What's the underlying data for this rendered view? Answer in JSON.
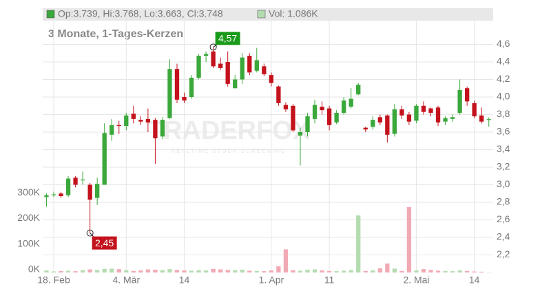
{
  "chart_data": {
    "type": "candlestick",
    "ohlc_label": "Op:3.739, Hi:3.768, Lo:3.663, Cl:3.748",
    "volume_label": "Vol: 1.086K",
    "subtitle": "3 Monate, 1-Tages-Kerzen",
    "watermark": "TRADERFOX",
    "watermark_sub": "REALTIME STOCK SCREENING",
    "categories": [
      null,
      "18. Feb",
      null,
      null,
      null,
      null,
      null,
      null,
      null,
      null,
      null,
      "4. Mär",
      null,
      null,
      null,
      null,
      null,
      null,
      null,
      "14",
      null,
      null,
      null,
      null,
      null,
      null,
      null,
      null,
      null,
      null,
      null,
      "1. Apr",
      null,
      null,
      null,
      null,
      null,
      null,
      null,
      "11",
      null,
      null,
      null,
      null,
      null,
      null,
      null,
      null,
      null,
      null,
      null,
      "2. Mai",
      null,
      null,
      null,
      null,
      null,
      null,
      null,
      "14",
      null,
      null
    ],
    "open": [
      2.86,
      2.88,
      2.9,
      2.88,
      3.08,
      3.05,
      3.0,
      2.85,
      3.0,
      3.57,
      3.68,
      3.67,
      3.81,
      3.74,
      3.75,
      3.74,
      3.55,
      3.76,
      4.32,
      4.0,
      4.0,
      4.22,
      4.47,
      4.52,
      4.38,
      4.4,
      4.1,
      4.2,
      4.47,
      4.3,
      4.35,
      4.25,
      4.12,
      3.91,
      3.9,
      3.56,
      3.6,
      3.75,
      3.89,
      3.87,
      3.71,
      3.82,
      3.89,
      4.03,
      3.65,
      3.66,
      3.77,
      3.79,
      3.58,
      3.86,
      3.8,
      3.73,
      3.9,
      3.87,
      3.88,
      3.72,
      3.75,
      3.82,
      4.1,
      3.93,
      3.79,
      3.739
    ],
    "high": [
      2.9,
      2.92,
      2.92,
      3.1,
      3.1,
      3.15,
      3.02,
      3.08,
      3.7,
      3.75,
      3.73,
      3.82,
      3.9,
      3.78,
      3.87,
      3.76,
      3.77,
      4.43,
      4.38,
      4.05,
      4.25,
      4.49,
      4.52,
      4.57,
      4.45,
      4.52,
      4.25,
      4.5,
      4.5,
      4.56,
      4.38,
      4.28,
      4.13,
      3.94,
      3.92,
      3.65,
      3.82,
      3.97,
      3.95,
      3.9,
      3.85,
      4.0,
      4.1,
      4.16,
      3.66,
      3.78,
      3.8,
      3.8,
      3.92,
      3.9,
      3.83,
      3.92,
      3.95,
      3.88,
      3.9,
      3.78,
      3.8,
      4.2,
      4.12,
      3.96,
      3.88,
      3.768
    ],
    "low": [
      2.75,
      2.86,
      2.85,
      2.86,
      2.97,
      3.0,
      2.45,
      2.77,
      3.0,
      3.5,
      3.58,
      3.62,
      3.7,
      3.68,
      3.6,
      3.24,
      3.52,
      3.75,
      3.93,
      3.93,
      3.98,
      4.2,
      4.4,
      4.33,
      4.31,
      4.12,
      4.1,
      4.15,
      4.25,
      4.28,
      4.24,
      4.12,
      3.9,
      3.83,
      3.6,
      3.22,
      3.55,
      3.7,
      3.8,
      3.62,
      3.69,
      3.8,
      3.87,
      4.02,
      3.6,
      3.63,
      3.68,
      3.48,
      3.55,
      3.75,
      3.68,
      3.7,
      3.8,
      3.78,
      3.67,
      3.68,
      3.72,
      3.8,
      3.9,
      3.76,
      3.7,
      3.663
    ],
    "close": [
      2.88,
      2.89,
      2.87,
      3.07,
      3.0,
      3.06,
      2.83,
      3.01,
      3.59,
      3.68,
      3.67,
      3.79,
      3.75,
      3.72,
      3.71,
      3.53,
      3.74,
      4.32,
      3.97,
      3.96,
      4.22,
      4.47,
      4.49,
      4.35,
      4.33,
      4.15,
      4.2,
      4.45,
      4.28,
      4.42,
      4.26,
      4.16,
      3.93,
      3.86,
      3.62,
      3.6,
      3.78,
      3.91,
      3.85,
      3.68,
      3.82,
      3.96,
      3.98,
      4.14,
      3.63,
      3.74,
      3.71,
      3.57,
      3.86,
      3.79,
      3.72,
      3.9,
      3.83,
      3.82,
      3.71,
      3.76,
      3.77,
      4.08,
      3.95,
      3.78,
      3.72,
      3.748
    ],
    "volume": [
      8000,
      4000,
      6000,
      7000,
      5000,
      9000,
      12000,
      10000,
      14000,
      15000,
      13000,
      9000,
      6000,
      8000,
      12000,
      11000,
      9000,
      13000,
      10000,
      8000,
      7000,
      9000,
      8000,
      14000,
      12000,
      10000,
      9000,
      11000,
      7000,
      6000,
      5000,
      8000,
      24000,
      90000,
      9000,
      7000,
      11000,
      12000,
      8000,
      6000,
      5000,
      7000,
      9000,
      222000,
      6000,
      8000,
      16000,
      35000,
      15000,
      6000,
      255000,
      8000,
      13000,
      10000,
      7000,
      6000,
      5000,
      8000,
      6000,
      4000,
      3000,
      1086
    ],
    "up_color": "#3aa83a",
    "down_color": "#c4121c",
    "up_volume_color": "#b5dcb1",
    "down_volume_color": "#f1aab4",
    "ylim": [
      2.0,
      5.0
    ],
    "yticks": [
      {
        "value": 2.2,
        "label": "2,2"
      },
      {
        "value": 2.4,
        "label": "2,4"
      },
      {
        "value": 2.6,
        "label": "2,6"
      },
      {
        "value": 2.8,
        "label": "2,8"
      },
      {
        "value": 3.0,
        "label": "3,0"
      },
      {
        "value": 3.2,
        "label": "3,2"
      },
      {
        "value": 3.4,
        "label": "3,4"
      },
      {
        "value": 3.6,
        "label": "3,6"
      },
      {
        "value": 3.8,
        "label": "3,8"
      },
      {
        "value": 4.0,
        "label": "4,0"
      },
      {
        "value": 4.2,
        "label": "4,2"
      },
      {
        "value": 4.4,
        "label": "4,4"
      },
      {
        "value": 4.6,
        "label": "4,6"
      }
    ],
    "y2lim": [
      0,
      1025000
    ],
    "y2ticks": [
      {
        "value": 0,
        "label": "0K"
      },
      {
        "value": 100000,
        "label": "100K"
      },
      {
        "value": 200000,
        "label": "200K"
      },
      {
        "value": 300000,
        "label": "300K"
      }
    ],
    "annotations": [
      {
        "label": "4,57",
        "value": 4.57,
        "kind": "high",
        "color": "#1a9a1a"
      },
      {
        "label": "2,45",
        "value": 2.45,
        "kind": "low",
        "color": "#c4121c"
      }
    ],
    "grid": true
  }
}
